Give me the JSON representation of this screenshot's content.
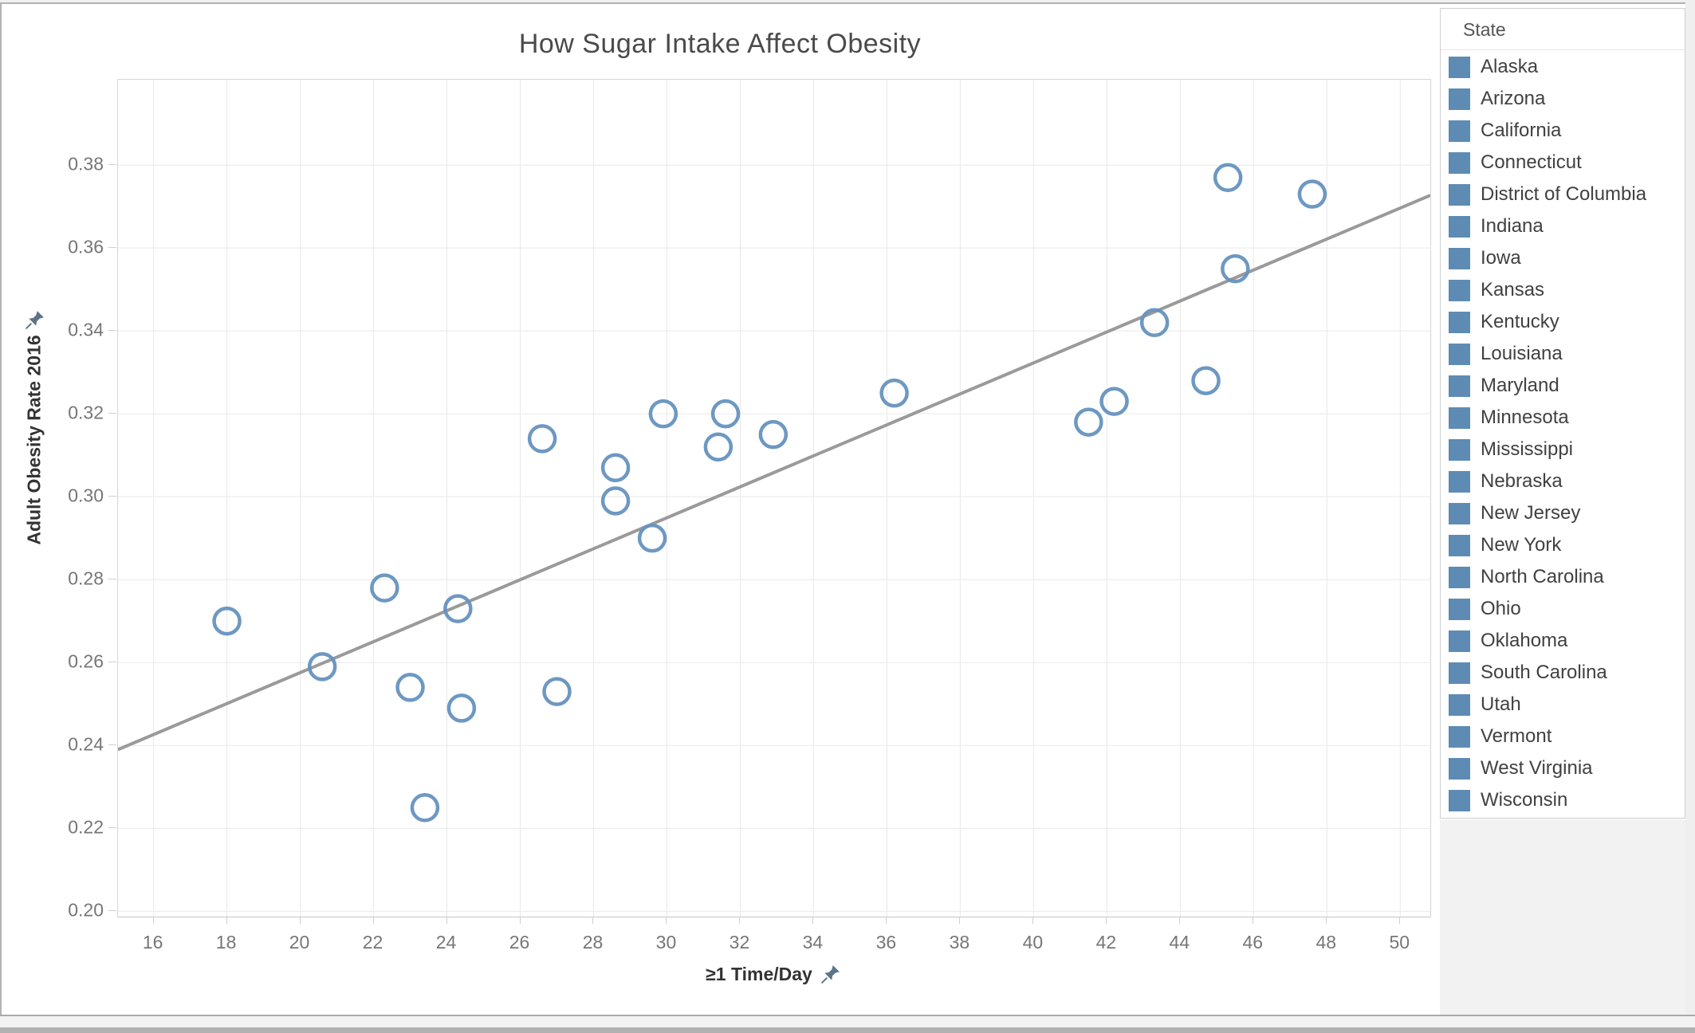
{
  "title": "How Sugar Intake Affect Obesity",
  "legend": {
    "title": "State",
    "items": [
      "Alaska",
      "Arizona",
      "California",
      "Connecticut",
      "District of Columbia",
      "Indiana",
      "Iowa",
      "Kansas",
      "Kentucky",
      "Louisiana",
      "Maryland",
      "Minnesota",
      "Mississippi",
      "Nebraska",
      "New Jersey",
      "New York",
      "North Carolina",
      "Ohio",
      "Oklahoma",
      "South Carolina",
      "Utah",
      "Vermont",
      "West Virginia",
      "Wisconsin"
    ]
  },
  "icons": {
    "x_axis_pin": "pin-icon",
    "y_axis_pin": "pin-icon"
  },
  "colors": {
    "marker_stroke": "#6592bf",
    "legend_swatch": "#5e8bb3",
    "trend_line": "#9a9a9a",
    "gridline": "#e9e9e9",
    "tick_text": "#767676",
    "axis_title_text": "#333333",
    "title_text": "#4a4a4a",
    "pin": "#5c7488"
  },
  "chart_data": {
    "type": "scatter",
    "title": "How Sugar Intake Affect Obesity",
    "xlabel": "≥1 Time/Day",
    "ylabel": "Adult Obesity Rate 2016",
    "legend_position": "right",
    "grid": true,
    "xlim": [
      15.03,
      50.82
    ],
    "ylim": [
      0.1987,
      0.4006
    ],
    "x_ticks": [
      16,
      18,
      20,
      22,
      24,
      26,
      28,
      30,
      32,
      34,
      36,
      38,
      40,
      42,
      44,
      46,
      48,
      50
    ],
    "y_ticks": [
      0.2,
      0.22,
      0.24,
      0.26,
      0.28,
      0.3,
      0.32,
      0.34,
      0.36,
      0.38
    ],
    "y_tick_labels": [
      "0.20",
      "0.22",
      "0.24",
      "0.26",
      "0.28",
      "0.30",
      "0.32",
      "0.34",
      "0.36",
      "0.38"
    ],
    "points": [
      {
        "x": 18.0,
        "y": 0.27
      },
      {
        "x": 20.6,
        "y": 0.259
      },
      {
        "x": 22.3,
        "y": 0.278
      },
      {
        "x": 23.0,
        "y": 0.254
      },
      {
        "x": 23.4,
        "y": 0.225
      },
      {
        "x": 24.3,
        "y": 0.273
      },
      {
        "x": 24.4,
        "y": 0.249
      },
      {
        "x": 26.6,
        "y": 0.314
      },
      {
        "x": 27.0,
        "y": 0.253
      },
      {
        "x": 28.6,
        "y": 0.307
      },
      {
        "x": 28.6,
        "y": 0.299
      },
      {
        "x": 29.6,
        "y": 0.29
      },
      {
        "x": 29.9,
        "y": 0.32
      },
      {
        "x": 31.4,
        "y": 0.312
      },
      {
        "x": 31.6,
        "y": 0.32
      },
      {
        "x": 32.9,
        "y": 0.315
      },
      {
        "x": 36.2,
        "y": 0.325
      },
      {
        "x": 41.5,
        "y": 0.318
      },
      {
        "x": 42.2,
        "y": 0.323
      },
      {
        "x": 43.3,
        "y": 0.342
      },
      {
        "x": 44.7,
        "y": 0.328
      },
      {
        "x": 45.3,
        "y": 0.377
      },
      {
        "x": 45.5,
        "y": 0.355
      },
      {
        "x": 47.6,
        "y": 0.373
      }
    ],
    "trend_line": {
      "x1": 15.03,
      "y1": 0.239,
      "x2": 50.82,
      "y2": 0.3727
    }
  }
}
